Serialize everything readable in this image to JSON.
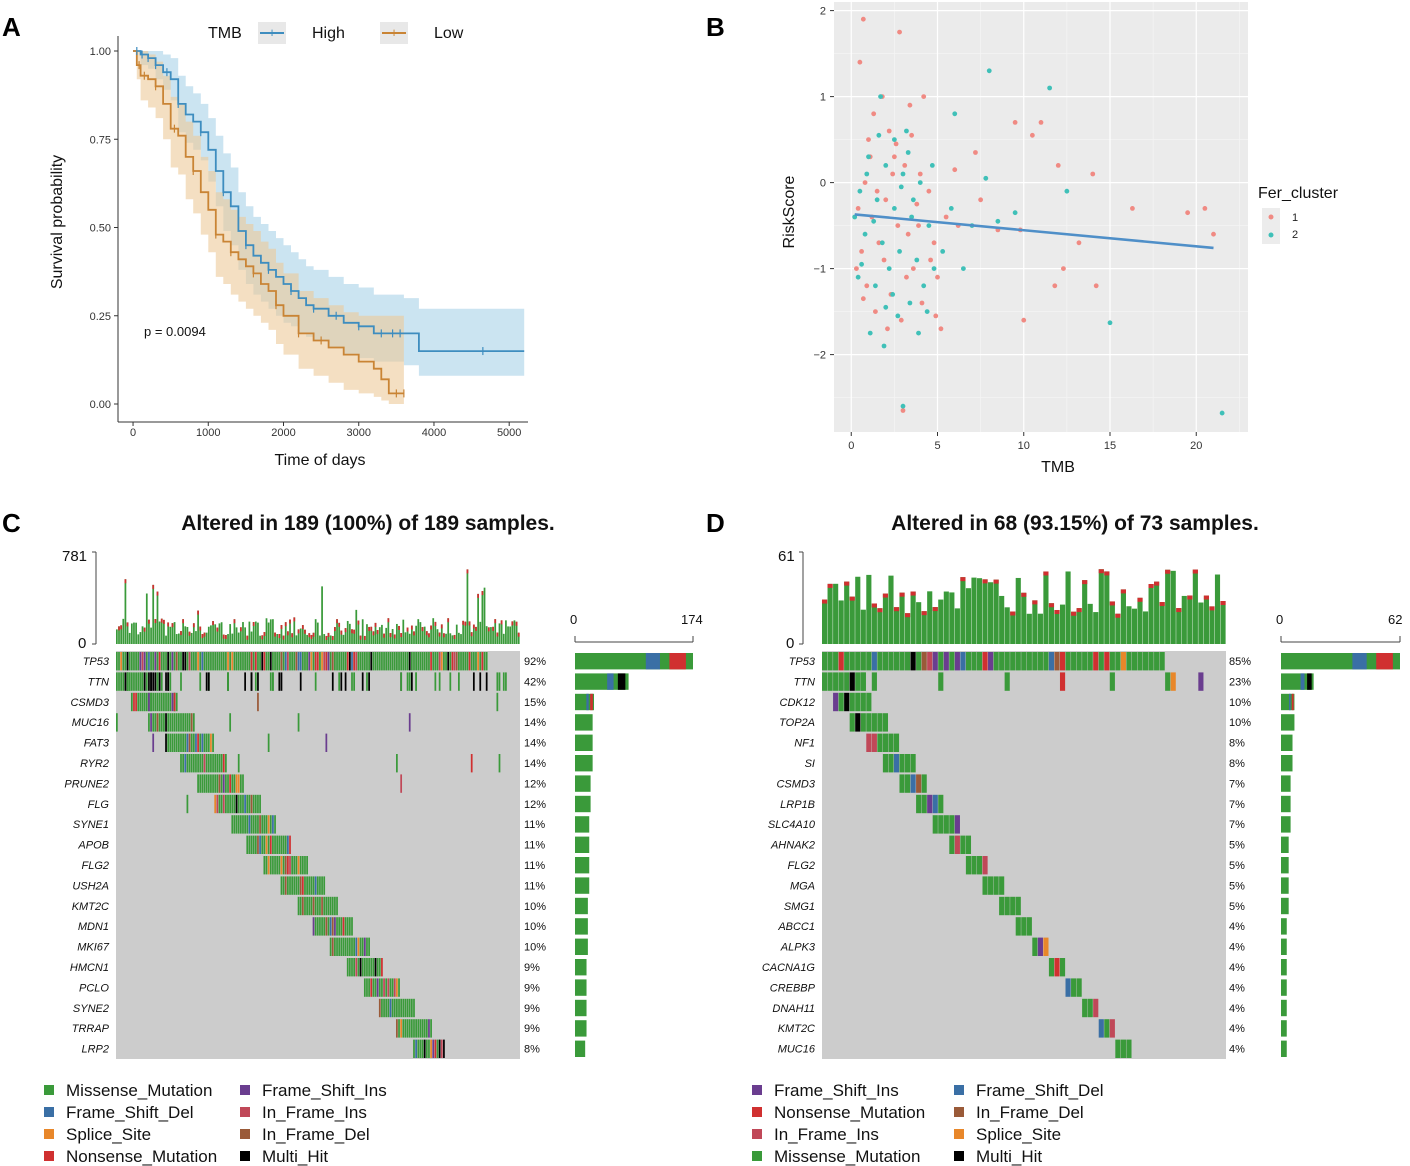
{
  "panels": [
    "A",
    "B",
    "C",
    "D"
  ],
  "colors": {
    "missense": "#3a9a3a",
    "frame_shift_del": "#3a6fa5",
    "splice_site": "#e8872a",
    "nonsense": "#d03030",
    "frame_shift_ins": "#6a3d8f",
    "in_frame_ins": "#c04858",
    "in_frame_del": "#9a5a38",
    "multi_hit": "#000000",
    "high": "#3e8dbf",
    "low": "#c98435",
    "cluster1": "#f08a83",
    "cluster2": "#3fc0b8",
    "grid_bg": "#ebebeb",
    "onco_bg": "#cccccc"
  },
  "chart_data": [
    {
      "type": "line",
      "panel": "A",
      "title": "",
      "legend_title": "TMB",
      "legend_position": "top",
      "xlabel": "Time of days",
      "ylabel": "Survival probability",
      "xlim": [
        -200,
        5250
      ],
      "ylim": [
        0,
        1.02
      ],
      "xticks": [
        0,
        1000,
        2000,
        3000,
        4000,
        5000
      ],
      "yticks": [
        "0.00",
        "0.25",
        "0.50",
        "0.75",
        "1.00"
      ],
      "annotation": "p = 0.0094",
      "series": [
        {
          "name": "High",
          "x": [
            0,
            100,
            200,
            300,
            400,
            500,
            600,
            700,
            800,
            900,
            1000,
            1100,
            1200,
            1300,
            1400,
            1500,
            1600,
            1700,
            1800,
            1900,
            2000,
            2100,
            2200,
            2300,
            2400,
            2600,
            2800,
            3000,
            3200,
            3600,
            3800,
            4000,
            4650,
            5200
          ],
          "y": [
            1.0,
            0.99,
            0.98,
            0.96,
            0.94,
            0.92,
            0.85,
            0.82,
            0.8,
            0.77,
            0.72,
            0.66,
            0.6,
            0.56,
            0.49,
            0.45,
            0.42,
            0.4,
            0.38,
            0.36,
            0.34,
            0.32,
            0.3,
            0.28,
            0.27,
            0.25,
            0.23,
            0.22,
            0.2,
            0.2,
            0.15,
            0.15,
            0.15,
            0.15
          ],
          "upper": [
            1.0,
            1.0,
            1.0,
            1.0,
            0.99,
            0.98,
            0.93,
            0.9,
            0.88,
            0.85,
            0.81,
            0.76,
            0.71,
            0.67,
            0.6,
            0.56,
            0.53,
            0.51,
            0.49,
            0.47,
            0.45,
            0.43,
            0.41,
            0.39,
            0.38,
            0.36,
            0.34,
            0.33,
            0.31,
            0.3,
            0.27,
            0.27,
            0.27,
            0.27
          ],
          "lower": [
            1.0,
            0.96,
            0.95,
            0.92,
            0.89,
            0.86,
            0.77,
            0.74,
            0.72,
            0.69,
            0.63,
            0.56,
            0.49,
            0.45,
            0.38,
            0.34,
            0.31,
            0.29,
            0.27,
            0.25,
            0.23,
            0.22,
            0.2,
            0.19,
            0.18,
            0.16,
            0.14,
            0.13,
            0.12,
            0.11,
            0.08,
            0.08,
            0.08,
            0.08
          ]
        },
        {
          "name": "Low",
          "x": [
            0,
            50,
            100,
            200,
            300,
            400,
            500,
            600,
            700,
            800,
            900,
            1000,
            1100,
            1200,
            1300,
            1400,
            1500,
            1600,
            1700,
            1800,
            1900,
            2000,
            2200,
            2400,
            2600,
            2800,
            3000,
            3200,
            3300,
            3400,
            3600
          ],
          "y": [
            1.0,
            0.96,
            0.93,
            0.92,
            0.9,
            0.85,
            0.78,
            0.76,
            0.7,
            0.66,
            0.6,
            0.55,
            0.48,
            0.46,
            0.43,
            0.41,
            0.39,
            0.37,
            0.34,
            0.32,
            0.28,
            0.25,
            0.2,
            0.18,
            0.16,
            0.14,
            0.12,
            0.1,
            0.07,
            0.03,
            0.03
          ],
          "upper": [
            1.0,
            1.0,
            1.0,
            0.99,
            0.97,
            0.93,
            0.87,
            0.85,
            0.8,
            0.76,
            0.7,
            0.66,
            0.6,
            0.58,
            0.55,
            0.53,
            0.51,
            0.49,
            0.46,
            0.44,
            0.4,
            0.37,
            0.32,
            0.3,
            0.28,
            0.26,
            0.25,
            0.25,
            0.25,
            0.25,
            0.25
          ],
          "lower": [
            1.0,
            0.92,
            0.86,
            0.84,
            0.81,
            0.75,
            0.67,
            0.65,
            0.58,
            0.54,
            0.48,
            0.43,
            0.36,
            0.34,
            0.31,
            0.29,
            0.27,
            0.25,
            0.23,
            0.21,
            0.17,
            0.14,
            0.1,
            0.08,
            0.06,
            0.04,
            0.03,
            0.02,
            0.01,
            0.0,
            0.0
          ]
        }
      ],
      "censor_high": [
        50,
        120,
        200,
        300,
        450,
        600,
        900,
        1200,
        1500,
        1800,
        2100,
        2400,
        2700,
        3000,
        3300,
        3450,
        3550,
        4650
      ],
      "censor_low": [
        80,
        150,
        300,
        550,
        800,
        1100,
        1300,
        1600,
        1900,
        2200,
        2500,
        3500,
        3600
      ]
    },
    {
      "type": "scatter",
      "panel": "B",
      "xlabel": "TMB",
      "ylabel": "RiskScore",
      "xlim": [
        -1,
        23
      ],
      "ylim": [
        -2.9,
        2.1
      ],
      "xticks": [
        "0",
        "5",
        "10",
        "15",
        "20"
      ],
      "yticks": [
        "2",
        "1",
        "0",
        "−1",
        "−2"
      ],
      "legend_title": "Fer_cluster",
      "legend_labels": [
        "1",
        "2"
      ],
      "legend_position": "right",
      "regression": {
        "x": [
          0.2,
          21
        ],
        "y": [
          -0.37,
          -0.76
        ]
      },
      "points_1": [
        [
          0.5,
          1.4
        ],
        [
          0.7,
          1.9
        ],
        [
          2.8,
          1.75
        ],
        [
          1.8,
          1.0
        ],
        [
          4.2,
          1.0
        ],
        [
          9.5,
          0.7
        ],
        [
          11.0,
          0.7
        ],
        [
          7.2,
          0.35
        ],
        [
          10.5,
          0.55
        ],
        [
          12.0,
          0.2
        ],
        [
          14.0,
          0.1
        ],
        [
          16.3,
          -0.3
        ],
        [
          19.5,
          -0.35
        ],
        [
          20.5,
          -0.3
        ],
        [
          9.8,
          -0.55
        ],
        [
          12.3,
          -1.0
        ],
        [
          13.2,
          -0.7
        ],
        [
          11.8,
          -1.2
        ],
        [
          14.2,
          -1.2
        ],
        [
          10.0,
          -1.6
        ],
        [
          5.2,
          -1.7
        ],
        [
          3.0,
          -2.65
        ],
        [
          21.0,
          -0.6
        ],
        [
          3.5,
          0.55
        ],
        [
          2.2,
          0.6
        ],
        [
          1.0,
          0.5
        ],
        [
          2.5,
          0.3
        ],
        [
          3.1,
          0.2
        ],
        [
          4.0,
          0.1
        ],
        [
          0.8,
          0.0
        ],
        [
          1.5,
          -0.1
        ],
        [
          2.0,
          -0.2
        ],
        [
          3.8,
          -0.25
        ],
        [
          4.5,
          -0.1
        ],
        [
          0.4,
          -0.3
        ],
        [
          1.2,
          -0.4
        ],
        [
          2.7,
          -0.5
        ],
        [
          3.3,
          -0.6
        ],
        [
          4.8,
          -0.7
        ],
        [
          0.6,
          -0.8
        ],
        [
          1.9,
          -0.9
        ],
        [
          3.6,
          -1.0
        ],
        [
          5.0,
          -1.1
        ],
        [
          0.9,
          -1.2
        ],
        [
          2.3,
          -1.3
        ],
        [
          4.1,
          -1.4
        ],
        [
          1.4,
          -1.5
        ],
        [
          2.9,
          -1.6
        ],
        [
          0.3,
          -1.0
        ],
        [
          5.5,
          -0.4
        ],
        [
          6.2,
          -0.5
        ],
        [
          7.5,
          -0.2
        ],
        [
          8.5,
          -0.55
        ],
        [
          1.1,
          0.3
        ],
        [
          2.4,
          0.1
        ],
        [
          3.9,
          -0.5
        ],
        [
          4.6,
          -0.9
        ],
        [
          0.7,
          -1.35
        ],
        [
          1.6,
          -0.7
        ],
        [
          3.2,
          -1.1
        ],
        [
          2.1,
          -1.7
        ],
        [
          4.9,
          -1.55
        ],
        [
          1.3,
          0.8
        ],
        [
          3.4,
          0.9
        ],
        [
          2.6,
          0.45
        ],
        [
          6.0,
          0.15
        ]
      ],
      "points_2": [
        [
          8.0,
          1.3
        ],
        [
          11.5,
          1.1
        ],
        [
          1.7,
          1.0
        ],
        [
          6.0,
          0.8
        ],
        [
          2.5,
          0.5
        ],
        [
          3.2,
          0.6
        ],
        [
          1.0,
          0.3
        ],
        [
          2.0,
          0.2
        ],
        [
          3.0,
          0.1
        ],
        [
          4.0,
          0.0
        ],
        [
          0.5,
          -0.1
        ],
        [
          1.5,
          -0.2
        ],
        [
          2.5,
          -0.3
        ],
        [
          3.5,
          -0.4
        ],
        [
          4.5,
          -0.5
        ],
        [
          0.8,
          -0.6
        ],
        [
          1.8,
          -0.7
        ],
        [
          2.8,
          -0.8
        ],
        [
          3.8,
          -0.9
        ],
        [
          4.8,
          -1.0
        ],
        [
          0.4,
          -1.1
        ],
        [
          1.4,
          -1.2
        ],
        [
          2.4,
          -1.3
        ],
        [
          3.4,
          -1.4
        ],
        [
          4.4,
          -1.5
        ],
        [
          1.9,
          -1.9
        ],
        [
          3.0,
          -2.6
        ],
        [
          8.5,
          -0.45
        ],
        [
          9.5,
          -0.35
        ],
        [
          15.0,
          -1.63
        ],
        [
          21.5,
          -2.68
        ],
        [
          12.5,
          -0.1
        ],
        [
          0.9,
          0.1
        ],
        [
          1.3,
          -0.45
        ],
        [
          2.2,
          -1.0
        ],
        [
          3.6,
          -0.2
        ],
        [
          4.2,
          -1.2
        ],
        [
          5.3,
          -0.8
        ],
        [
          6.5,
          -1.0
        ],
        [
          7.0,
          -0.5
        ],
        [
          2.7,
          -1.55
        ],
        [
          1.1,
          -1.75
        ],
        [
          3.3,
          0.35
        ],
        [
          0.6,
          -0.95
        ],
        [
          4.7,
          0.2
        ],
        [
          5.8,
          -0.3
        ],
        [
          2.9,
          -0.05
        ],
        [
          1.6,
          0.55
        ],
        [
          3.9,
          -1.75
        ],
        [
          0.2,
          -0.4
        ],
        [
          7.8,
          0.05
        ],
        [
          2.0,
          -1.45
        ]
      ]
    },
    {
      "type": "heatmap",
      "panel": "C",
      "title": "Altered in 189 (100%) of 189 samples.",
      "top_max": "781",
      "top_min": "0",
      "side_min": "0",
      "side_max": "174",
      "side_max_value": 174,
      "genes": [
        "TP53",
        "TTN",
        "CSMD3",
        "MUC16",
        "FAT3",
        "RYR2",
        "PRUNE2",
        "FLG",
        "SYNE1",
        "APOB",
        "FLG2",
        "USH2A",
        "KMT2C",
        "MDN1",
        "MKI67",
        "HMCN1",
        "PCLO",
        "SYNE2",
        "TRRAP",
        "LRP2"
      ],
      "percents": [
        "92%",
        "42%",
        "15%",
        "14%",
        "14%",
        "14%",
        "12%",
        "12%",
        "11%",
        "11%",
        "11%",
        "11%",
        "10%",
        "10%",
        "10%",
        "9%",
        "9%",
        "9%",
        "9%",
        "8%"
      ],
      "side_counts": [
        174,
        79,
        28,
        26,
        26,
        26,
        23,
        23,
        21,
        21,
        21,
        21,
        19,
        19,
        19,
        17,
        17,
        17,
        17,
        15
      ],
      "legend": [
        "Missense_Mutation",
        "Frame_Shift_Ins",
        "Frame_Shift_Del",
        "In_Frame_Ins",
        "Splice_Site",
        "In_Frame_Del",
        "Nonsense_Mutation",
        "Multi_Hit"
      ],
      "legend_keys": [
        "missense",
        "frame_shift_ins",
        "frame_shift_del",
        "in_frame_ins",
        "splice_site",
        "in_frame_del",
        "nonsense",
        "multi_hit"
      ]
    },
    {
      "type": "heatmap",
      "panel": "D",
      "title": "Altered in 68 (93.15%) of 73 samples.",
      "top_max": "61",
      "top_min": "0",
      "side_min": "0",
      "side_max": "62",
      "side_max_value": 62,
      "genes": [
        "TP53",
        "TTN",
        "CDK12",
        "TOP2A",
        "NF1",
        "SI",
        "CSMD3",
        "LRP1B",
        "SLC4A10",
        "AHNAK2",
        "FLG2",
        "MGA",
        "SMG1",
        "ABCC1",
        "ALPK3",
        "CACNA1G",
        "CREBBP",
        "DNAH11",
        "KMT2C",
        "MUC16"
      ],
      "percents": [
        "85%",
        "23%",
        "10%",
        "10%",
        "8%",
        "8%",
        "7%",
        "7%",
        "7%",
        "5%",
        "5%",
        "5%",
        "5%",
        "4%",
        "4%",
        "4%",
        "4%",
        "4%",
        "4%",
        "4%"
      ],
      "side_counts": [
        62,
        17,
        7,
        7,
        6,
        6,
        5,
        5,
        5,
        4,
        4,
        4,
        4,
        3,
        3,
        3,
        3,
        3,
        3,
        3
      ],
      "legend": [
        "Frame_Shift_Ins",
        "Frame_Shift_Del",
        "Nonsense_Mutation",
        "In_Frame_Del",
        "In_Frame_Ins",
        "Splice_Site",
        "Missense_Mutation",
        "Multi_Hit"
      ],
      "legend_keys": [
        "frame_shift_ins",
        "frame_shift_del",
        "nonsense",
        "in_frame_del",
        "in_frame_ins",
        "splice_site",
        "missense",
        "multi_hit"
      ]
    }
  ]
}
